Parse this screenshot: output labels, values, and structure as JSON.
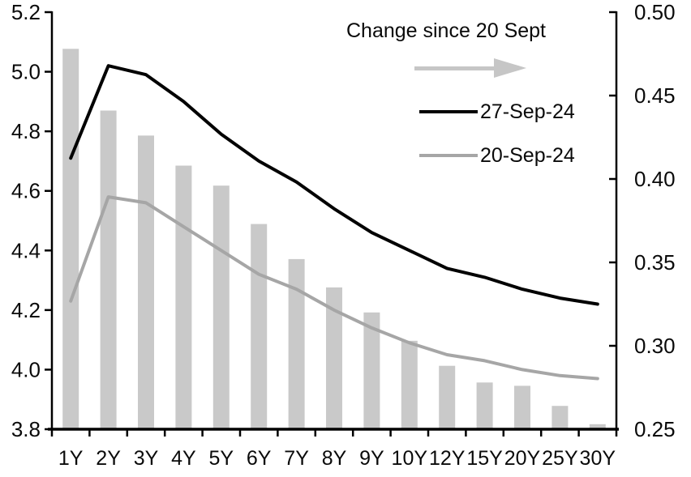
{
  "chart_data": {
    "type": "combo-bar-line",
    "title": "",
    "categories": [
      "1Y",
      "2Y",
      "3Y",
      "4Y",
      "5Y",
      "6Y",
      "7Y",
      "8Y",
      "9Y",
      "10Y",
      "12Y",
      "15Y",
      "20Y",
      "25Y",
      "30Y"
    ],
    "left_axis": {
      "min": 3.8,
      "max": 5.2,
      "tick_values": [
        5.2,
        5.0,
        4.8,
        4.6,
        4.4,
        4.2,
        4.0,
        3.8
      ],
      "tick_labels": [
        "5.2",
        "5.0",
        "4.8",
        "4.6",
        "4.4",
        "4.2",
        "4.0",
        "3.8"
      ]
    },
    "right_axis": {
      "min": 0.25,
      "max": 0.5,
      "tick_values": [
        0.5,
        0.45,
        0.4,
        0.35,
        0.3,
        0.25
      ],
      "tick_labels": [
        "0.50",
        "0.45",
        "0.40",
        "0.35",
        "0.30",
        "0.25"
      ]
    },
    "series": [
      {
        "name": "Change since 20 Sept",
        "type": "bar",
        "axis": "right",
        "color": "#c9c9c9",
        "values": [
          0.478,
          0.441,
          0.426,
          0.408,
          0.396,
          0.373,
          0.352,
          0.335,
          0.32,
          0.303,
          0.288,
          0.278,
          0.276,
          0.264,
          0.253
        ]
      },
      {
        "name": "27-Sep-24",
        "type": "line",
        "axis": "left",
        "color": "#000000",
        "values": [
          4.71,
          5.02,
          4.99,
          4.9,
          4.79,
          4.7,
          4.63,
          4.54,
          4.46,
          4.4,
          4.34,
          4.31,
          4.27,
          4.24,
          4.22
        ]
      },
      {
        "name": "20-Sep-24",
        "type": "line",
        "axis": "left",
        "color": "#a6a6a6",
        "values": [
          4.23,
          4.58,
          4.56,
          4.48,
          4.4,
          4.32,
          4.27,
          4.2,
          4.14,
          4.09,
          4.05,
          4.03,
          4.0,
          3.98,
          3.97
        ]
      }
    ],
    "legend": {
      "position": "top-right-inside",
      "title": "Change since 20 Sept",
      "arrow_color": "#c6c6c6",
      "items": [
        {
          "label": "27-Sep-24",
          "color": "#000000"
        },
        {
          "label": "20-Sep-24",
          "color": "#a6a6a6"
        }
      ]
    },
    "grid": false,
    "axis_color": "#000000"
  }
}
